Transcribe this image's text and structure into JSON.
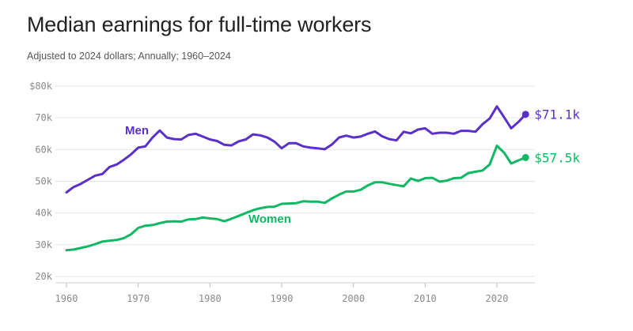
{
  "title": "Median earnings for full-time workers",
  "subtitle": "Adjusted to 2024 dollars; Annually; 1960–2024",
  "chart_data": {
    "type": "line",
    "title": "Median earnings for full-time workers",
    "subtitle": "Adjusted to 2024 dollars; Annually; 1960–2024",
    "xlabel": "",
    "ylabel": "",
    "xlim": [
      1960,
      2024
    ],
    "ylim": [
      20000,
      80000
    ],
    "grid": true,
    "x_ticks": [
      1960,
      1970,
      1980,
      1990,
      2000,
      2010,
      2020
    ],
    "x_tick_labels": [
      "1960",
      "1970",
      "1980",
      "1990",
      "2000",
      "2010",
      "2020"
    ],
    "y_ticks": [
      20000,
      30000,
      40000,
      50000,
      60000,
      70000,
      80000
    ],
    "y_tick_labels": [
      "20k",
      "30k",
      "40k",
      "50k",
      "60k",
      "70k",
      "$80k"
    ],
    "x": [
      1960,
      1961,
      1962,
      1963,
      1964,
      1965,
      1966,
      1967,
      1968,
      1969,
      1970,
      1971,
      1972,
      1973,
      1974,
      1975,
      1976,
      1977,
      1978,
      1979,
      1980,
      1981,
      1982,
      1983,
      1984,
      1985,
      1986,
      1987,
      1988,
      1989,
      1990,
      1991,
      1992,
      1993,
      1994,
      1995,
      1996,
      1997,
      1998,
      1999,
      2000,
      2001,
      2002,
      2003,
      2004,
      2005,
      2006,
      2007,
      2008,
      2009,
      2010,
      2011,
      2012,
      2013,
      2014,
      2015,
      2016,
      2017,
      2018,
      2019,
      2020,
      2021,
      2022,
      2023,
      2024
    ],
    "series": [
      {
        "name": "Men",
        "color": "#5b2fc9",
        "end_label": "$71.1k",
        "values": [
          46500,
          48200,
          49200,
          50500,
          51800,
          52300,
          54500,
          55300,
          56800,
          58500,
          60600,
          61000,
          63800,
          66000,
          63800,
          63300,
          63200,
          64600,
          65000,
          64100,
          63200,
          62700,
          61500,
          61300,
          62600,
          63200,
          64800,
          64500,
          63800,
          62500,
          60400,
          62000,
          62000,
          61000,
          60600,
          60400,
          60100,
          61600,
          63800,
          64400,
          63800,
          64100,
          65000,
          65700,
          64200,
          63300,
          62900,
          65600,
          65100,
          66300,
          66700,
          65000,
          65300,
          65300,
          65000,
          65900,
          65900,
          65600,
          68000,
          69800,
          73600,
          70200,
          66700,
          68700,
          71100
        ]
      },
      {
        "name": "Women",
        "color": "#10b863",
        "end_label": "$57.5k",
        "values": [
          28300,
          28500,
          29000,
          29500,
          30200,
          31000,
          31300,
          31500,
          32100,
          33300,
          35300,
          36000,
          36200,
          36800,
          37300,
          37400,
          37300,
          38000,
          38100,
          38600,
          38300,
          38100,
          37400,
          38200,
          39100,
          40000,
          40900,
          41500,
          41900,
          42000,
          42900,
          43000,
          43100,
          43700,
          43600,
          43600,
          43200,
          44600,
          45800,
          46800,
          46800,
          47300,
          48700,
          49700,
          49700,
          49200,
          48800,
          48400,
          50900,
          50100,
          51000,
          51100,
          49900,
          50200,
          51000,
          51100,
          52600,
          53000,
          53400,
          55300,
          61200,
          59000,
          55600,
          56600,
          57500
        ]
      }
    ]
  }
}
